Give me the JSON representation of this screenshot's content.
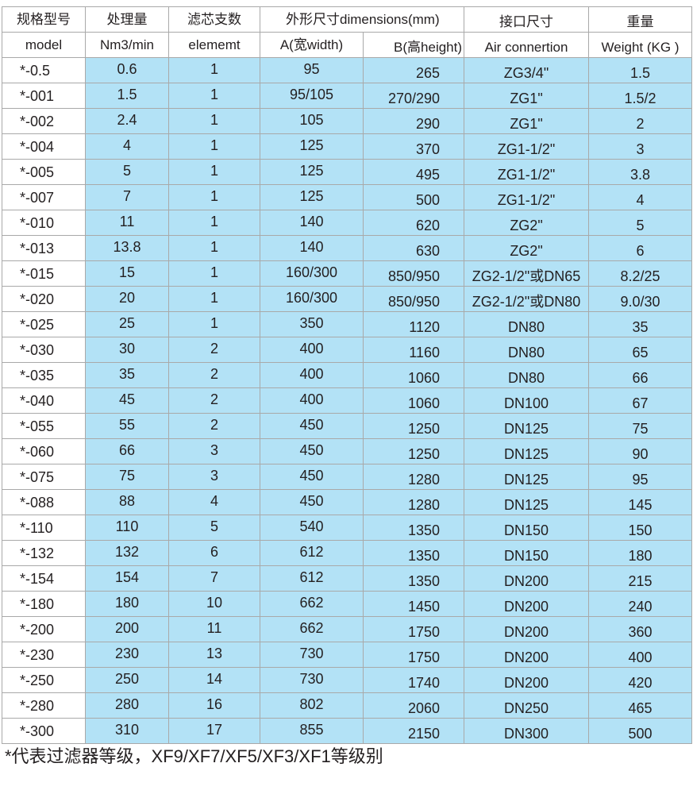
{
  "header_row1": [
    "规格型号",
    "处理量",
    "滤芯支数",
    "外形尺寸dimensions(mm)",
    "接口尺寸",
    "重量"
  ],
  "header_row2": [
    "model",
    "Nm3/min",
    "elememt",
    "A(宽width)",
    "B(高height)",
    "Air connertion",
    "Weight (KG )"
  ],
  "colors": {
    "cell_fill": "#b3e2f6",
    "grid": "#a9a9a9"
  },
  "rows": [
    [
      "*-0.5",
      "0.6",
      "1",
      "95",
      "265",
      "ZG3/4\"",
      "1.5"
    ],
    [
      "*-001",
      "1.5",
      "1",
      "95/105",
      "270/290",
      "ZG1\"",
      "1.5/2"
    ],
    [
      "*-002",
      "2.4",
      "1",
      "105",
      "290",
      "ZG1\"",
      "2"
    ],
    [
      "*-004",
      "4",
      "1",
      "125",
      "370",
      "ZG1-1/2\"",
      "3"
    ],
    [
      "*-005",
      "5",
      "1",
      "125",
      "495",
      "ZG1-1/2\"",
      "3.8"
    ],
    [
      "*-007",
      "7",
      "1",
      "125",
      "500",
      "ZG1-1/2\"",
      "4"
    ],
    [
      "*-010",
      "11",
      "1",
      "140",
      "620",
      "ZG2\"",
      "5"
    ],
    [
      "*-013",
      "13.8",
      "1",
      "140",
      "630",
      "ZG2\"",
      "6"
    ],
    [
      "*-015",
      "15",
      "1",
      "160/300",
      "850/950",
      "ZG2-1/2\"或DN65",
      "8.2/25"
    ],
    [
      "*-020",
      "20",
      "1",
      "160/300",
      "850/950",
      "ZG2-1/2\"或DN80",
      "9.0/30"
    ],
    [
      "*-025",
      "25",
      "1",
      "350",
      "1120",
      "DN80",
      "35"
    ],
    [
      "*-030",
      "30",
      "2",
      "400",
      "1160",
      "DN80",
      "65"
    ],
    [
      "*-035",
      "35",
      "2",
      "400",
      "1060",
      "DN80",
      "66"
    ],
    [
      "*-040",
      "45",
      "2",
      "400",
      "1060",
      "DN100",
      "67"
    ],
    [
      "*-055",
      "55",
      "2",
      "450",
      "1250",
      "DN125",
      "75"
    ],
    [
      "*-060",
      "66",
      "3",
      "450",
      "1250",
      "DN125",
      "90"
    ],
    [
      "*-075",
      "75",
      "3",
      "450",
      "1280",
      "DN125",
      "95"
    ],
    [
      "*-088",
      "88",
      "4",
      "450",
      "1280",
      "DN125",
      "145"
    ],
    [
      "*-110",
      "110",
      "5",
      "540",
      "1350",
      "DN150",
      "150"
    ],
    [
      "*-132",
      "132",
      "6",
      "612",
      "1350",
      "DN150",
      "180"
    ],
    [
      "*-154",
      "154",
      "7",
      "612",
      "1350",
      "DN200",
      "215"
    ],
    [
      "*-180",
      "180",
      "10",
      "662",
      "1450",
      "DN200",
      "240"
    ],
    [
      "*-200",
      "200",
      "11",
      "662",
      "1750",
      "DN200",
      "360"
    ],
    [
      "*-230",
      "230",
      "13",
      "730",
      "1750",
      "DN200",
      "400"
    ],
    [
      "*-250",
      "250",
      "14",
      "730",
      "1740",
      "DN200",
      "420"
    ],
    [
      "*-280",
      "280",
      "16",
      "802",
      "2060",
      "DN250",
      "465"
    ],
    [
      "*-300",
      "310",
      "17",
      "855",
      "2150",
      "DN300",
      "500"
    ]
  ],
  "footnote": "*代表过滤器等级，XF9/XF7/XF5/XF3/XF1等级别"
}
